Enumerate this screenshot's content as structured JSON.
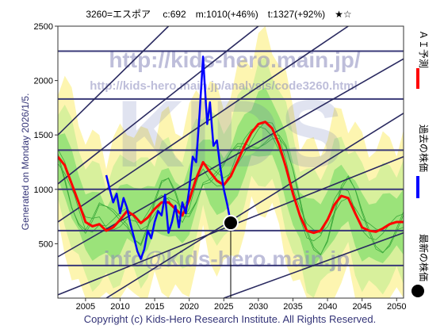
{
  "header": "3260=エスポア　 c:692　m:1010(+46%)　t:1327(+92%)　★☆",
  "side_label": "Generated on Monday 2026/1/5.",
  "footer": "Copyright (c) Kids-Hero Research Institute. All Rights Reserved.",
  "watermarks": {
    "url1": "http://kids-hero.main.jp/",
    "url2": "http://kids-hero.main.jp/analysis/code3260.html",
    "logo": "KIDS",
    "mail": "info@kids-hero.main.jp"
  },
  "legend": [
    {
      "text": "ＡＩ予測",
      "color": "#ff0000"
    },
    {
      "text": "過去の株価",
      "color": "#0000ff"
    },
    {
      "text": "最新の株価",
      "color": "#000000"
    }
  ],
  "chart_data": {
    "type": "line",
    "xlim": [
      2001,
      2051
    ],
    "ylim": [
      0,
      2500
    ],
    "x_ticks": [
      2005,
      2010,
      2015,
      2020,
      2025,
      2030,
      2035,
      2040,
      2045,
      2050
    ],
    "y_ticks": [
      500,
      1000,
      1500,
      2000,
      2500
    ],
    "hlines": [
      300,
      620,
      1000,
      1360,
      1830,
      2270
    ],
    "diagonal_channels": [
      {
        "x": [
          2001,
          2051
        ],
        "y": [
          30,
          1300
        ]
      },
      {
        "x": [
          2001,
          2051
        ],
        "y": [
          380,
          2200
        ]
      },
      {
        "x": [
          2001,
          2043
        ],
        "y": [
          700,
          2500
        ]
      },
      {
        "x": [
          2001,
          2030
        ],
        "y": [
          1050,
          2500
        ]
      },
      {
        "x": [
          2001,
          2017
        ],
        "y": [
          1500,
          2500
        ]
      },
      {
        "x": [
          2008,
          2051
        ],
        "y": [
          0,
          1700
        ]
      },
      {
        "x": [
          2025,
          2051
        ],
        "y": [
          0,
          600
        ]
      }
    ],
    "latest_point": {
      "x": 2026,
      "y": 692
    },
    "series": [
      {
        "name": "ＡＩ予測",
        "color": "#ff0000",
        "x": [
          2001,
          2002,
          2003,
          2004,
          2005,
          2006,
          2007,
          2008,
          2009,
          2010,
          2011,
          2012,
          2013,
          2014,
          2015,
          2016,
          2017,
          2018,
          2019,
          2020,
          2021,
          2022,
          2023,
          2024,
          2025,
          2026,
          2027,
          2028,
          2029,
          2030,
          2031,
          2032,
          2033,
          2034,
          2035,
          2036,
          2037,
          2038,
          2039,
          2040,
          2041,
          2042,
          2043,
          2044,
          2045,
          2046,
          2047,
          2048,
          2049,
          2050,
          2051
        ],
        "values": [
          1300,
          1220,
          1050,
          880,
          700,
          660,
          680,
          620,
          650,
          720,
          800,
          760,
          690,
          740,
          820,
          880,
          880,
          820,
          760,
          900,
          1100,
          1250,
          1160,
          1080,
          1040,
          1120,
          1260,
          1400,
          1520,
          1600,
          1620,
          1560,
          1410,
          1200,
          960,
          760,
          620,
          600,
          620,
          720,
          860,
          940,
          920,
          780,
          650,
          620,
          610,
          640,
          680,
          700,
          700
        ]
      },
      {
        "name": "過去の株価",
        "color": "#0000ff",
        "x": [
          2008,
          2008.5,
          2009,
          2009.5,
          2010,
          2010.5,
          2011,
          2011.5,
          2012,
          2012.5,
          2013,
          2013.5,
          2014,
          2014.5,
          2015,
          2015.5,
          2016,
          2016.5,
          2017,
          2017.5,
          2018,
          2018.5,
          2019,
          2019.5,
          2020,
          2020.5,
          2021,
          2021.5,
          2022,
          2022.3,
          2022.6,
          2023,
          2023.5,
          2024,
          2024.5,
          2025,
          2025.5,
          2026
        ],
        "values": [
          1130,
          1000,
          880,
          960,
          780,
          920,
          830,
          680,
          560,
          430,
          360,
          450,
          620,
          550,
          700,
          800,
          760,
          950,
          600,
          700,
          850,
          650,
          880,
          780,
          1000,
          1300,
          1250,
          1700,
          2220,
          1900,
          1600,
          1800,
          1400,
          1450,
          1200,
          1000,
          860,
          692
        ]
      }
    ]
  }
}
